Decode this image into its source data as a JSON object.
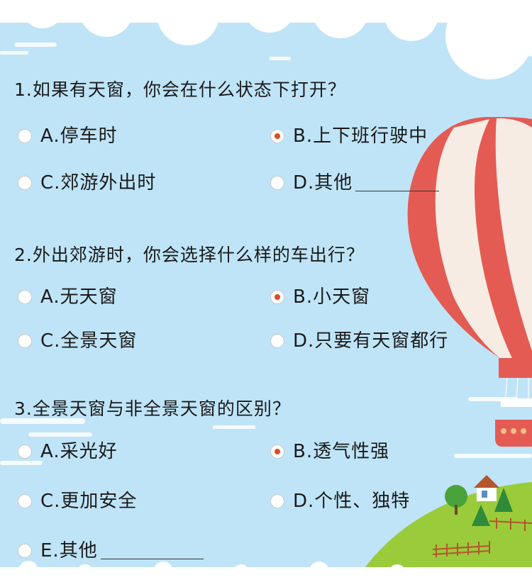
{
  "colors": {
    "background": "#bfe4f7",
    "radio_checked": "#e04a1f",
    "balloon_red": "#e45b54",
    "hill_green": "#9acb3b"
  },
  "questions": [
    {
      "title": "1.如果有天窗，你会在什么状态下打开？",
      "options": [
        {
          "label": "A.停车时",
          "selected": false
        },
        {
          "label": "B.上下班行驶中",
          "selected": true
        },
        {
          "label": "C.郊游外出时",
          "selected": false
        },
        {
          "label": "D.其他",
          "selected": false,
          "blank": true
        }
      ]
    },
    {
      "title": "2.外出郊游时，你会选择什么样的车出行？",
      "options": [
        {
          "label": "A.无天窗",
          "selected": false
        },
        {
          "label": "B.小天窗",
          "selected": true
        },
        {
          "label": "C.全景天窗",
          "selected": false
        },
        {
          "label": "D.只要有天窗都行",
          "selected": false
        }
      ]
    },
    {
      "title": "3.全景天窗与非全景天窗的区别？",
      "options": [
        {
          "label": "A.采光好",
          "selected": false
        },
        {
          "label": "B.透气性强",
          "selected": true
        },
        {
          "label": "C.更加安全",
          "selected": false
        },
        {
          "label": "D.个性、独特",
          "selected": false
        },
        {
          "label": "E.其他",
          "selected": false,
          "blank": true
        }
      ]
    }
  ],
  "decorations": [
    "cloud",
    "hot-air-balloon",
    "hill",
    "house",
    "trees",
    "fence"
  ]
}
